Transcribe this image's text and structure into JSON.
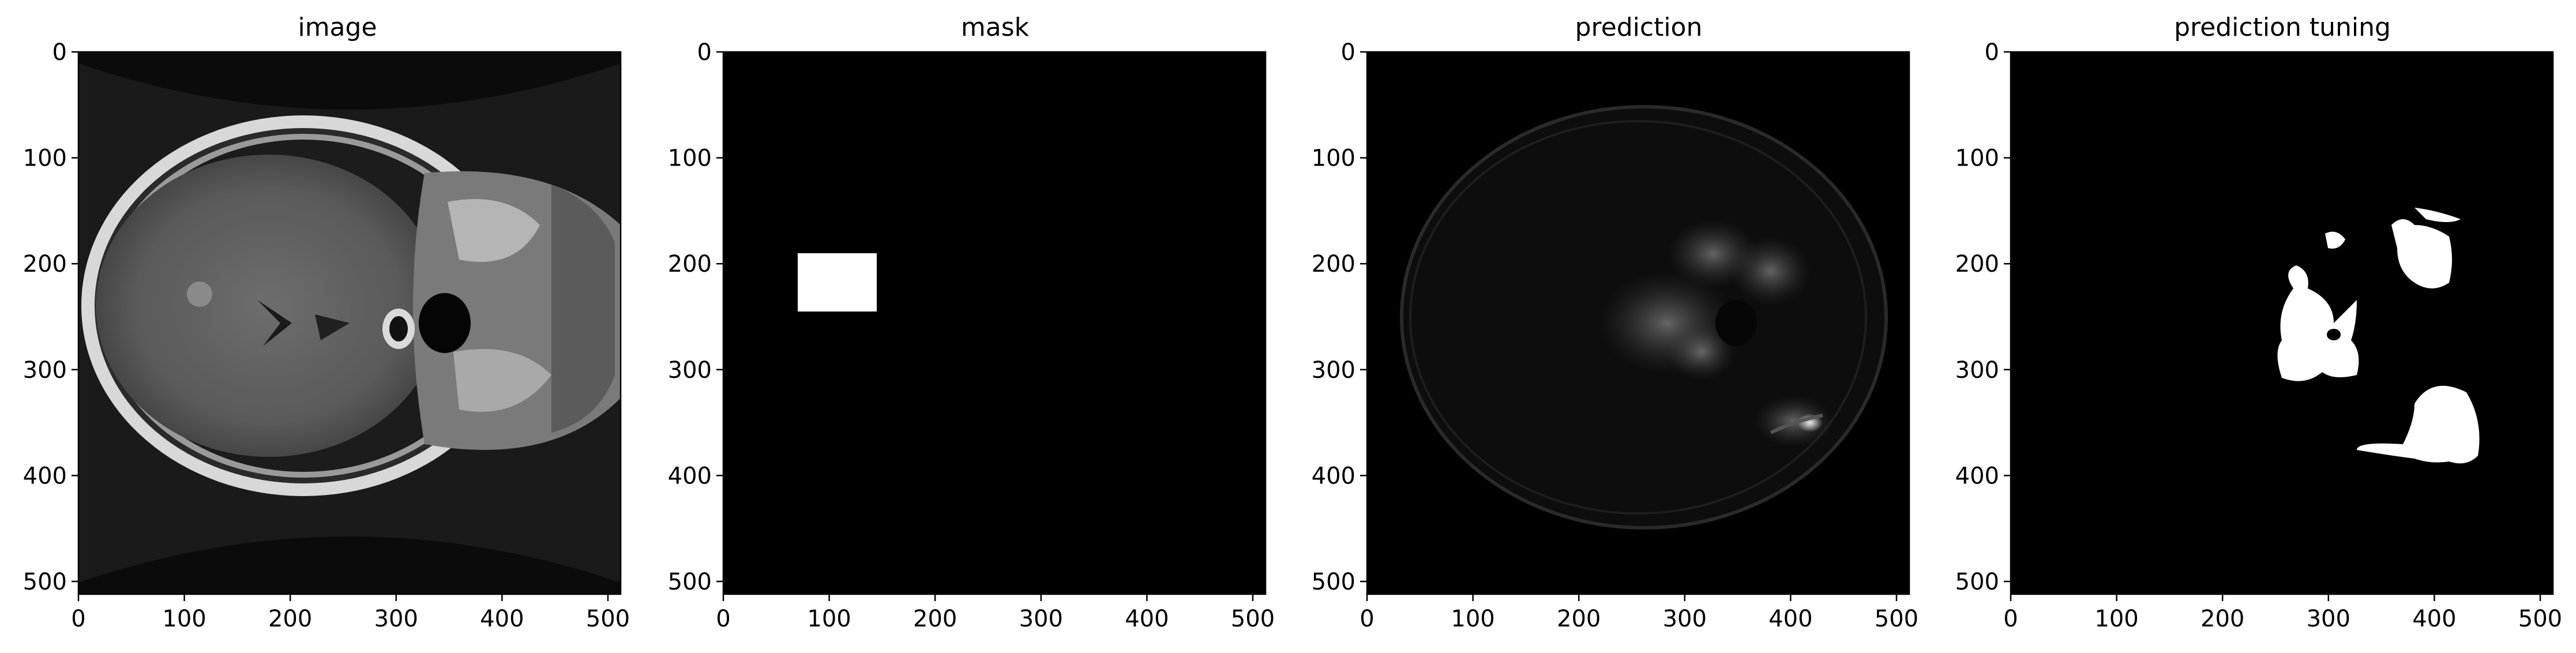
{
  "figure": {
    "panels": [
      {
        "title": "image",
        "x_ticks": [
          "0",
          "100",
          "200",
          "300",
          "400",
          "500"
        ],
        "y_ticks": [
          "0",
          "100",
          "200",
          "300",
          "400",
          "500"
        ],
        "content": "mri-slice"
      },
      {
        "title": "mask",
        "x_ticks": [
          "0",
          "100",
          "200",
          "300",
          "400",
          "500"
        ],
        "y_ticks": [
          "0",
          "100",
          "200",
          "300",
          "400",
          "500"
        ],
        "content": "mask"
      },
      {
        "title": "prediction",
        "x_ticks": [
          "0",
          "100",
          "200",
          "300",
          "400",
          "500"
        ],
        "y_ticks": [
          "0",
          "100",
          "200",
          "300",
          "400",
          "500"
        ],
        "content": "prediction"
      },
      {
        "title": "prediction tuning",
        "x_ticks": [
          "0",
          "100",
          "200",
          "300",
          "400",
          "500"
        ],
        "y_ticks": [
          "0",
          "100",
          "200",
          "300",
          "400",
          "500"
        ],
        "content": "tuned"
      }
    ],
    "axis_range": [
      0,
      512
    ],
    "mask_box": {
      "x": [
        70,
        145
      ],
      "y": [
        190,
        245
      ]
    },
    "colors": {
      "background": "#000000",
      "foreground": "#ffffff",
      "figure": "#ffffff"
    }
  }
}
